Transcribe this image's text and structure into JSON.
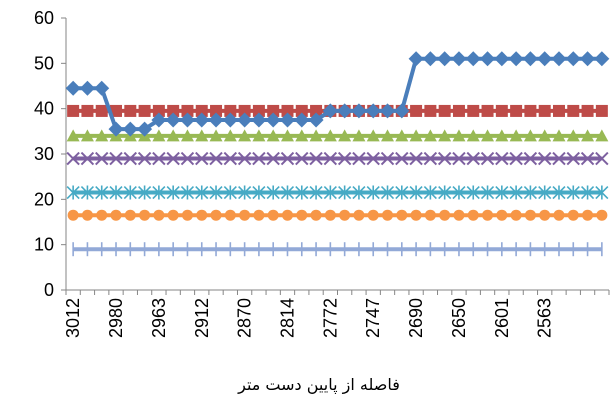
{
  "chart_data": {
    "type": "line",
    "xlabel": "فاصله از پایین دست متر",
    "ylim": [
      0,
      60
    ],
    "yticks": [
      0,
      10,
      20,
      30,
      40,
      50,
      60
    ],
    "x_tick_labels": [
      "3012",
      "2980",
      "2963",
      "2912",
      "2870",
      "2814",
      "2772",
      "2747",
      "2690",
      "2650",
      "2601",
      "2563"
    ],
    "n_points": 38,
    "grid": false,
    "series": [
      {
        "color": "#4a7ebb",
        "marker": "diamond",
        "values": [
          44.5,
          44.5,
          44.5,
          35.5,
          35.5,
          35.5,
          37.5,
          37.5,
          37.5,
          37.5,
          37.5,
          37.5,
          37.5,
          37.5,
          37.5,
          37.5,
          37.5,
          37.5,
          39.5,
          39.5,
          39.5,
          39.5,
          39.5,
          39.5,
          51,
          51,
          51,
          51,
          51,
          51,
          51,
          51,
          51,
          51,
          51,
          51,
          51,
          51
        ]
      },
      {
        "color": "#be4b48",
        "marker": "square",
        "values": 39.5
      },
      {
        "color": "#98b954",
        "marker": "triangle",
        "values": 34
      },
      {
        "color": "#7d60a0",
        "marker": "x",
        "values": 29
      },
      {
        "color": "#46aac5",
        "marker": "star",
        "values": 21.5
      },
      {
        "color": "#f79646",
        "marker": "circle",
        "values": 16.5
      },
      {
        "color": "#92a9d7",
        "marker": "plus",
        "values": 9
      }
    ]
  }
}
